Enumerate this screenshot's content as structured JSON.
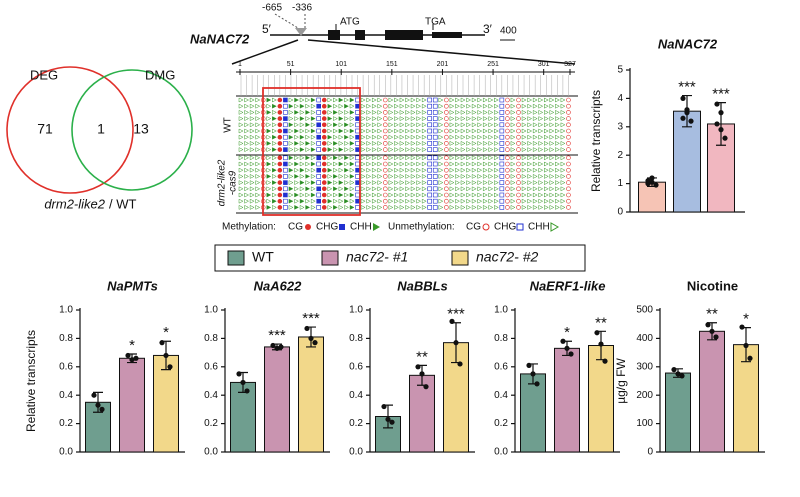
{
  "venn": {
    "left_label": "DEG",
    "right_label": "DMG",
    "left_only": 71,
    "overlap": 1,
    "right_only": 13,
    "caption_gene": "drm2-like2",
    "caption_rest": "/ WT"
  },
  "gene_diagram": {
    "title": "NaNAC72",
    "five_prime": "5′",
    "three_prime": "3′",
    "start_codon": "ATG",
    "stop_codon": "TGA",
    "region_start": -665,
    "region_end": -336,
    "scale_bar": 400
  },
  "methylation": {
    "positions": [
      1,
      51,
      101,
      151,
      201,
      251,
      301,
      327
    ],
    "row_labels": {
      "wt": "WT",
      "mutant": [
        "drm2-like2",
        "-cas9"
      ]
    },
    "legend": {
      "methylated_label": "Methylation:",
      "unmethylated_label": "Unmethylation:",
      "contexts": [
        "CG",
        "CHG",
        "CHH"
      ]
    }
  },
  "legend": [
    {
      "name": "WT",
      "color": "#6f9e8f"
    },
    {
      "name": "nac72- #1",
      "color": "#c994b0"
    },
    {
      "name": "nac72- #2",
      "color": "#f2d88a"
    }
  ],
  "chart_data": [
    {
      "type": "bar",
      "title": "NaNAC72",
      "italic": true,
      "ylabel": "Relative transcripts",
      "ylim": [
        0,
        5
      ],
      "yticks": [
        0,
        1,
        2,
        3,
        4,
        5
      ],
      "values": [
        1.05,
        3.55,
        3.1
      ],
      "errors": [
        0.15,
        0.55,
        0.75
      ],
      "significance": [
        null,
        "***",
        "***"
      ],
      "colors": [
        "#f6c4b5",
        "#a7bde0",
        "#f1b7c0"
      ],
      "points": [
        [
          1.0,
          1.2,
          0.95,
          1.1,
          1.05
        ],
        [
          4.0,
          3.6,
          3.2,
          3.3,
          3.5
        ],
        [
          3.8,
          3.5,
          2.6,
          3.1,
          2.9
        ]
      ]
    },
    {
      "type": "bar",
      "title": "NaPMTs",
      "italic": true,
      "ylabel": "Relative transcripts",
      "ylim": [
        0,
        1.0
      ],
      "yticks": [
        {
          "value": 0,
          "label": "0.0"
        },
        {
          "value": 0.2,
          "label": "0.2"
        },
        {
          "value": 0.4,
          "label": "0.4"
        },
        {
          "value": 0.6,
          "label": "0.6"
        },
        {
          "value": 0.8,
          "label": "0.8"
        },
        {
          "value": 1,
          "label": "1.0"
        }
      ],
      "values": [
        0.35,
        0.66,
        0.68
      ],
      "errors": [
        0.07,
        0.03,
        0.1
      ],
      "significance": [
        null,
        "*",
        "*"
      ],
      "colors": [
        "#6f9e8f",
        "#c994b0",
        "#f2d88a"
      ],
      "points": [
        [
          0.4,
          0.33,
          0.3
        ],
        [
          0.68,
          0.65,
          0.66
        ],
        [
          0.77,
          0.68,
          0.6
        ]
      ]
    },
    {
      "type": "bar",
      "title": "NaA622",
      "italic": true,
      "ylim": [
        0,
        1.0
      ],
      "yticks": [
        {
          "value": 0,
          "label": "0.0"
        },
        {
          "value": 0.2,
          "label": "0.2"
        },
        {
          "value": 0.4,
          "label": "0.4"
        },
        {
          "value": 0.6,
          "label": "0.6"
        },
        {
          "value": 0.8,
          "label": "0.8"
        },
        {
          "value": 1,
          "label": "1.0"
        }
      ],
      "values": [
        0.49,
        0.74,
        0.81
      ],
      "errors": [
        0.07,
        0.02,
        0.07
      ],
      "significance": [
        null,
        "***",
        "***"
      ],
      "colors": [
        "#6f9e8f",
        "#c994b0",
        "#f2d88a"
      ],
      "points": [
        [
          0.55,
          0.49,
          0.43
        ],
        [
          0.75,
          0.73,
          0.74
        ],
        [
          0.87,
          0.8,
          0.77
        ]
      ]
    },
    {
      "type": "bar",
      "title": "NaBBLs",
      "italic": true,
      "ylim": [
        0,
        1.0
      ],
      "yticks": [
        {
          "value": 0,
          "label": "0.0"
        },
        {
          "value": 0.2,
          "label": "0.2"
        },
        {
          "value": 0.4,
          "label": "0.4"
        },
        {
          "value": 0.6,
          "label": "0.6"
        },
        {
          "value": 0.8,
          "label": "0.8"
        },
        {
          "value": 1,
          "label": "1.0"
        }
      ],
      "values": [
        0.25,
        0.54,
        0.77
      ],
      "errors": [
        0.08,
        0.07,
        0.14
      ],
      "significance": [
        null,
        "**",
        "***"
      ],
      "colors": [
        "#6f9e8f",
        "#c994b0",
        "#f2d88a"
      ],
      "points": [
        [
          0.32,
          0.23,
          0.21
        ],
        [
          0.6,
          0.55,
          0.46
        ],
        [
          0.92,
          0.77,
          0.62
        ]
      ]
    },
    {
      "type": "bar",
      "title": "NaERF1-like",
      "italic": true,
      "ylim": [
        0,
        1.0
      ],
      "yticks": [
        {
          "value": 0,
          "label": "0.0"
        },
        {
          "value": 0.2,
          "label": "0.2"
        },
        {
          "value": 0.4,
          "label": "0.4"
        },
        {
          "value": 0.6,
          "label": "0.6"
        },
        {
          "value": 0.8,
          "label": "0.8"
        },
        {
          "value": 1,
          "label": "1.0"
        }
      ],
      "values": [
        0.55,
        0.73,
        0.75
      ],
      "errors": [
        0.07,
        0.05,
        0.1
      ],
      "significance": [
        null,
        "*",
        "**"
      ],
      "colors": [
        "#6f9e8f",
        "#c994b0",
        "#f2d88a"
      ],
      "points": [
        [
          0.61,
          0.55,
          0.48
        ],
        [
          0.78,
          0.73,
          0.69
        ],
        [
          0.84,
          0.76,
          0.64
        ]
      ]
    },
    {
      "type": "bar",
      "title": "Nicotine",
      "italic": false,
      "ylabel": "µg/g FW",
      "ylim": [
        0,
        500
      ],
      "yticks": [
        0,
        100,
        200,
        300,
        400,
        500
      ],
      "values": [
        278,
        425,
        378
      ],
      "errors": [
        15,
        30,
        60
      ],
      "significance": [
        null,
        "**",
        "*"
      ],
      "colors": [
        "#6f9e8f",
        "#c994b0",
        "#f2d88a"
      ],
      "points": [
        [
          290,
          275,
          268
        ],
        [
          448,
          425,
          405
        ],
        [
          440,
          375,
          330
        ]
      ]
    }
  ]
}
